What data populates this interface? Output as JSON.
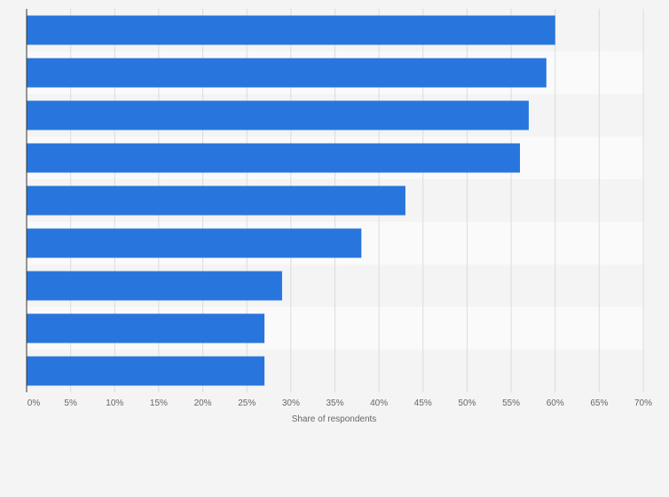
{
  "chart_data": {
    "type": "bar",
    "orientation": "horizontal",
    "categories": [
      "",
      "",
      "",
      "",
      "",
      "",
      "",
      "",
      ""
    ],
    "values": [
      60,
      59,
      57,
      56,
      43,
      38,
      29,
      27,
      27
    ],
    "xlabel": "Share of respondents",
    "ylabel": "",
    "xlim": [
      0,
      70
    ],
    "x_ticks": [
      "0%",
      "5%",
      "10%",
      "15%",
      "20%",
      "25%",
      "30%",
      "35%",
      "40%",
      "45%",
      "50%",
      "55%",
      "60%",
      "65%",
      "70%"
    ],
    "grid": true,
    "colors": {
      "bar": "#2876dd",
      "background": "#f4f4f4",
      "band_dark": "#f4f4f4",
      "band_light": "#fafafa",
      "grid": "#dcdcdc",
      "axis": "#333333",
      "text": "#666666"
    }
  }
}
